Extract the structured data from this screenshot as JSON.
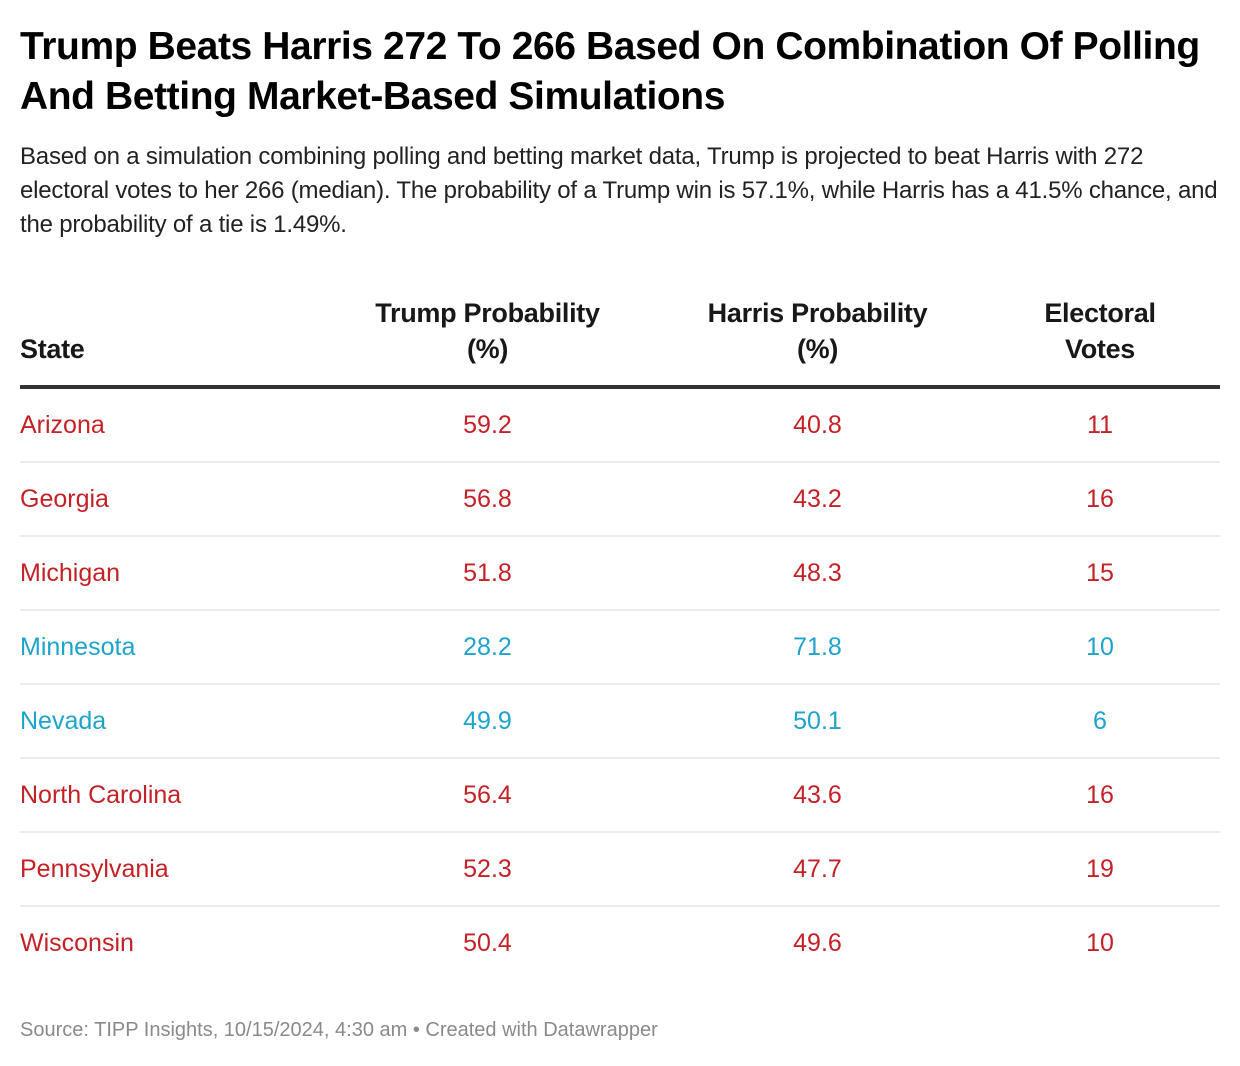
{
  "title": "Trump Beats Harris 272 To 266 Based On Combination Of Polling And Betting Market-Based Simulations",
  "description": "Based on a simulation combining polling and betting market data, Trump is projected to beat Harris with 272 electoral votes to her 266 (median). The probability of a Trump win is 57.1%, while Harris has a 41.5% chance, and the probability of a tie is 1.49%.",
  "footer": "Source: TIPP Insights, 10/15/2024, 4:30 am • Created with Datawrapper",
  "colors": {
    "trump": "#c42127",
    "harris": "#1ea3cb"
  },
  "chart_data": {
    "type": "table",
    "title": "Trump Beats Harris 272 To 266 Based On Combination Of Polling And Betting Market-Based Simulations",
    "columns": [
      "State",
      "Trump Probability (%)",
      "Harris Probability (%)",
      "Electoral Votes"
    ],
    "rows": [
      {
        "state": "Arizona",
        "trump": "59.2",
        "harris": "40.8",
        "ev": "11",
        "leader": "trump"
      },
      {
        "state": "Georgia",
        "trump": "56.8",
        "harris": "43.2",
        "ev": "16",
        "leader": "trump"
      },
      {
        "state": "Michigan",
        "trump": "51.8",
        "harris": "48.3",
        "ev": "15",
        "leader": "trump"
      },
      {
        "state": "Minnesota",
        "trump": "28.2",
        "harris": "71.8",
        "ev": "10",
        "leader": "harris"
      },
      {
        "state": "Nevada",
        "trump": "49.9",
        "harris": "50.1",
        "ev": "6",
        "leader": "harris"
      },
      {
        "state": "North Carolina",
        "trump": "56.4",
        "harris": "43.6",
        "ev": "16",
        "leader": "trump"
      },
      {
        "state": "Pennsylvania",
        "trump": "52.3",
        "harris": "47.7",
        "ev": "19",
        "leader": "trump"
      },
      {
        "state": "Wisconsin",
        "trump": "50.4",
        "harris": "49.6",
        "ev": "10",
        "leader": "trump"
      }
    ]
  }
}
